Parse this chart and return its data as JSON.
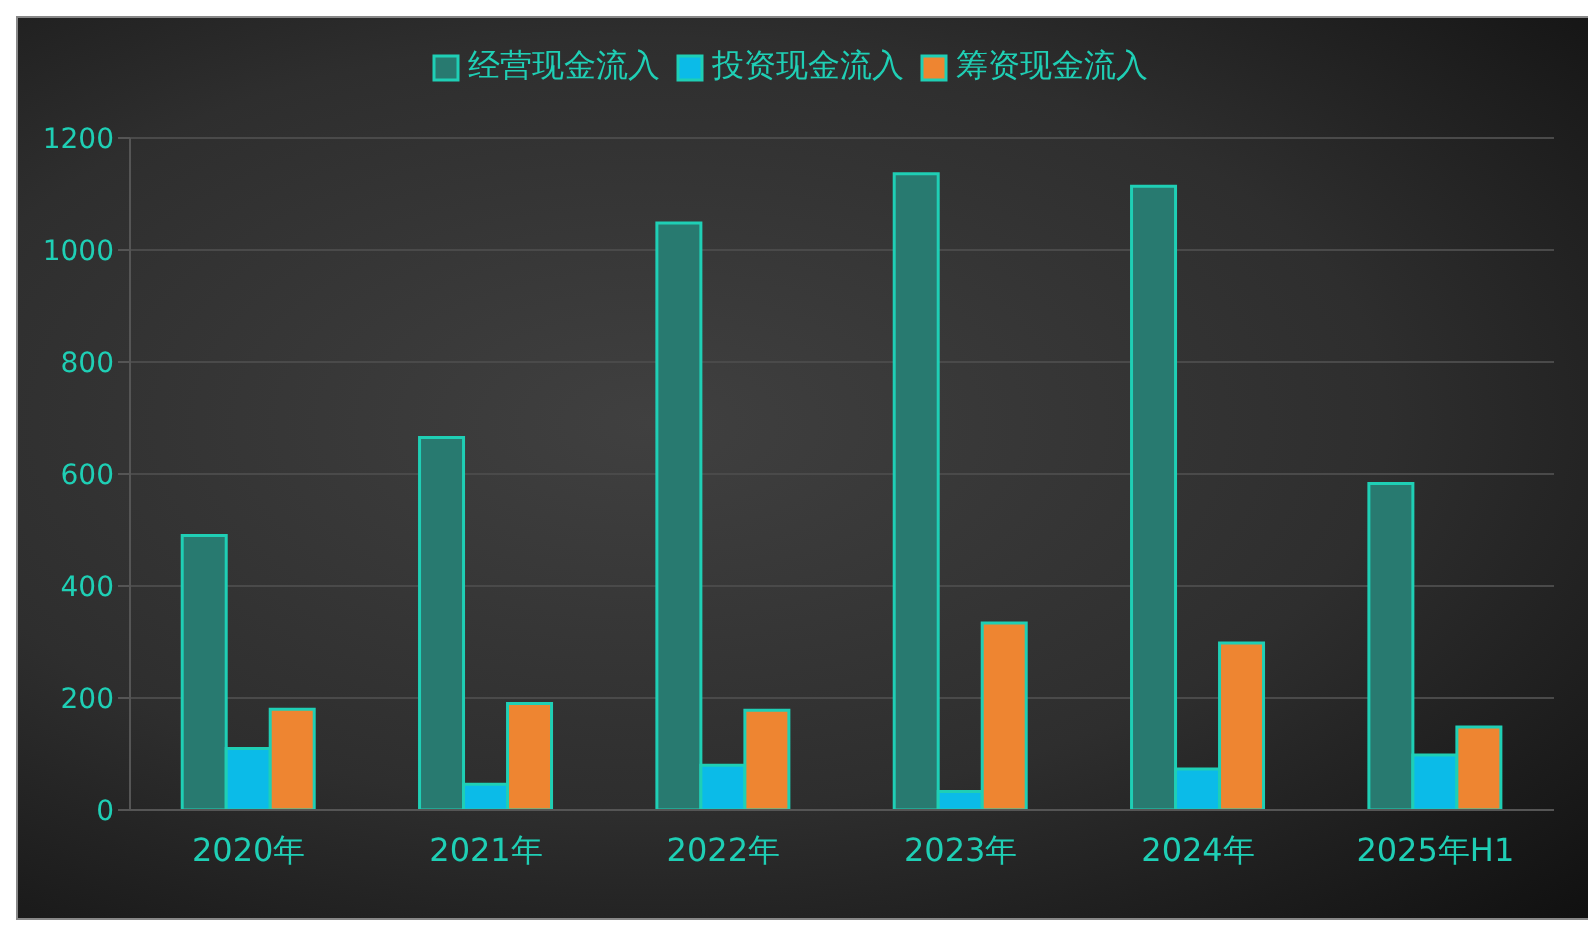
{
  "chart_data": {
    "type": "bar",
    "categories": [
      "2020年",
      "2021年",
      "2022年",
      "2023年",
      "2024年",
      "2025年H1"
    ],
    "series": [
      {
        "name": "经营现金流入",
        "color": "#287a70",
        "values": [
          490,
          665,
          1048,
          1136,
          1114,
          583
        ]
      },
      {
        "name": "投资现金流入",
        "color": "#0bbbe8",
        "values": [
          110,
          46,
          80,
          33,
          73,
          98
        ]
      },
      {
        "name": "筹资现金流入",
        "color": "#ee8531",
        "values": [
          180,
          190,
          178,
          334,
          298,
          148
        ]
      }
    ],
    "ylim": [
      0,
      1200
    ],
    "yticks": [
      0,
      200,
      400,
      600,
      800,
      1000,
      1200
    ],
    "grid": "y",
    "legend": "top"
  }
}
